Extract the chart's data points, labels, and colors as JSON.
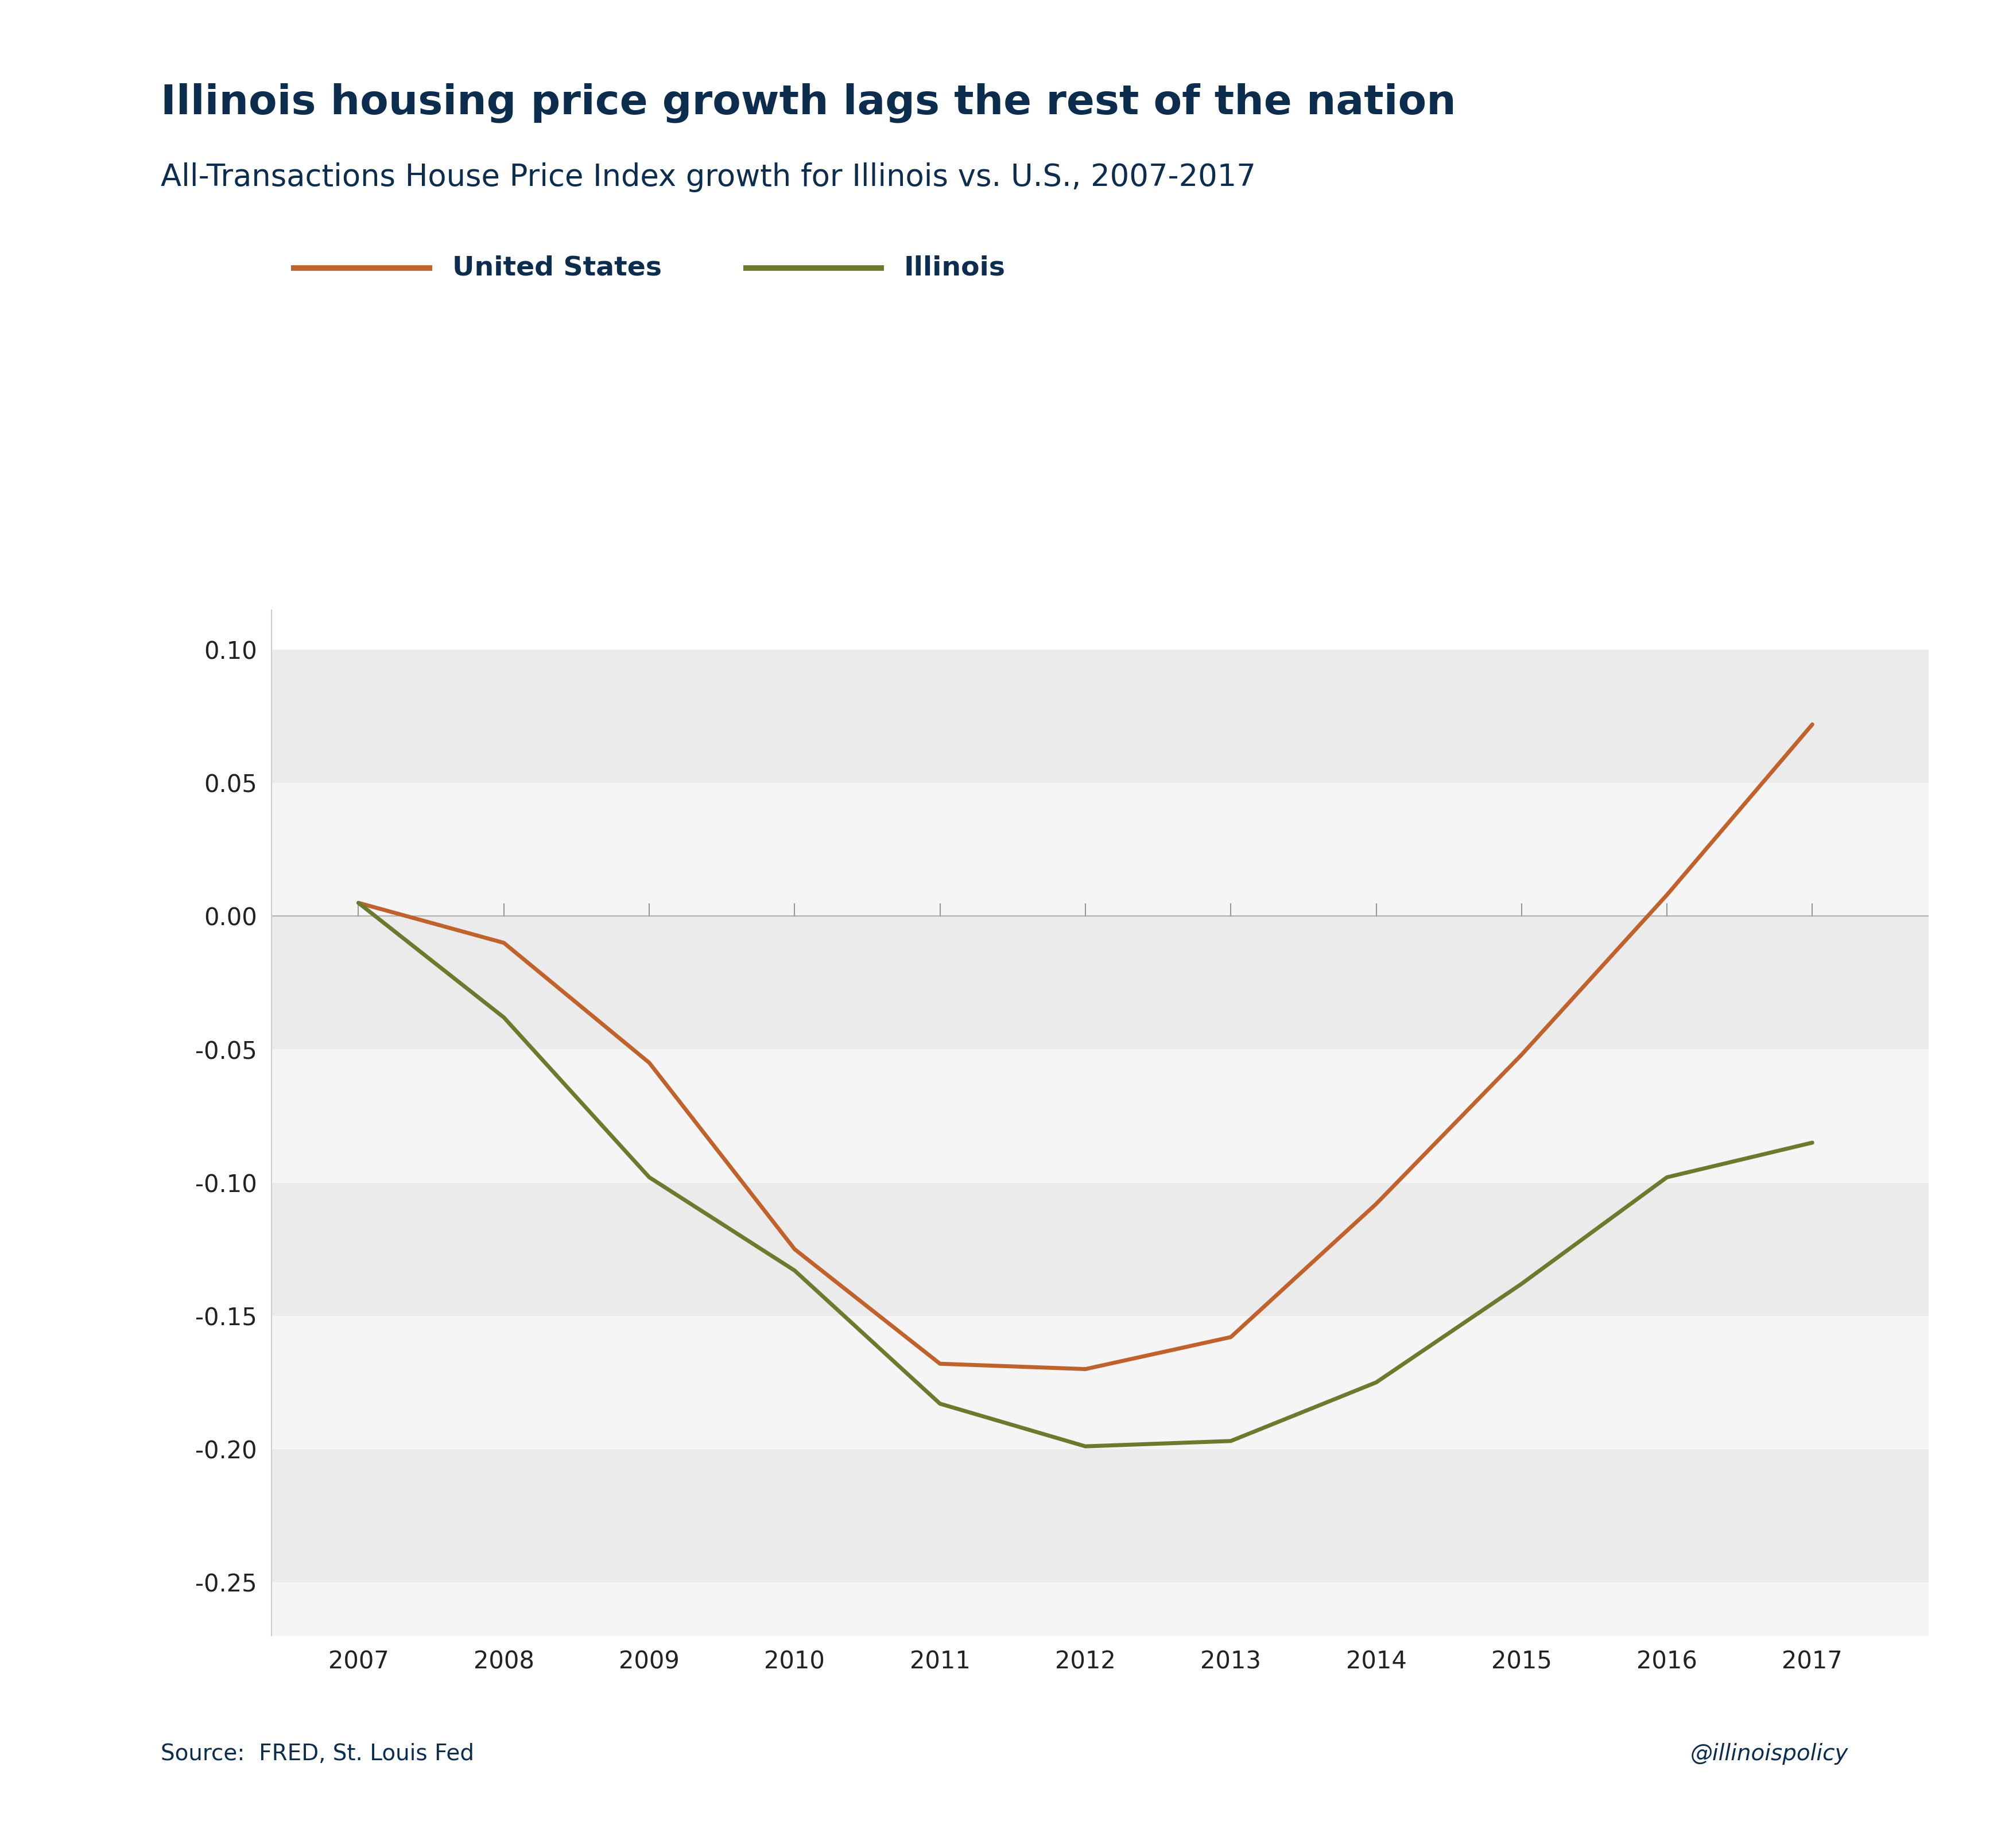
{
  "title": "Illinois housing price growth lags the rest of the nation",
  "subtitle": "All-Transactions House Price Index growth for Illinois vs. U.S., 2007-2017",
  "source": "Source:  FRED, St. Louis Fed",
  "watermark": "@illinoispolicy",
  "title_color": "#0d2d4e",
  "subtitle_color": "#0d2d4e",
  "source_color": "#0d2d4e",
  "watermark_color": "#0d2d4e",
  "years": [
    2007,
    2008,
    2009,
    2010,
    2011,
    2012,
    2013,
    2014,
    2015,
    2016,
    2017
  ],
  "us_values": [
    0.005,
    -0.01,
    -0.055,
    -0.125,
    -0.168,
    -0.17,
    -0.158,
    -0.108,
    -0.052,
    0.008,
    0.072
  ],
  "il_values": [
    0.005,
    -0.038,
    -0.098,
    -0.133,
    -0.183,
    -0.199,
    -0.197,
    -0.175,
    -0.138,
    -0.098,
    -0.085
  ],
  "us_color": "#c0622c",
  "il_color": "#6d7a2e",
  "us_label": "United States",
  "il_label": "Illinois",
  "ylim": [
    -0.27,
    0.115
  ],
  "yticks": [
    -0.25,
    -0.2,
    -0.15,
    -0.1,
    -0.05,
    0.0,
    0.05,
    0.1
  ],
  "line_width": 5.0,
  "bg_color": "#ffffff",
  "band_colors": [
    "#ebebeb",
    "#f5f5f5",
    "#ebebeb",
    "#f5f5f5",
    "#ebebeb",
    "#f5f5f5",
    "#ebebeb",
    "#f5f5f5"
  ]
}
